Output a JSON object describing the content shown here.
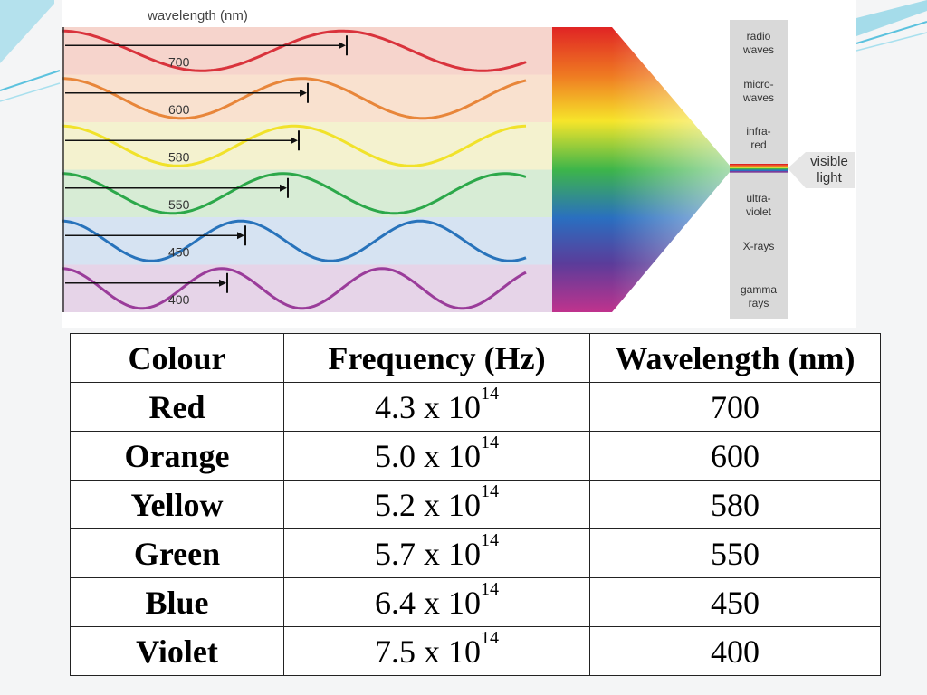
{
  "diagram": {
    "axis_label": "wavelength (nm)",
    "waves": [
      {
        "nm": "700",
        "color": "#d9333c",
        "band": "#f6d4cc"
      },
      {
        "nm": "600",
        "color": "#e8863a",
        "band": "#f9e1cf"
      },
      {
        "nm": "580",
        "color": "#f1e22a",
        "band": "#f4f2cf"
      },
      {
        "nm": "550",
        "color": "#2ca84a",
        "band": "#d7ecd5"
      },
      {
        "nm": "450",
        "color": "#2873bb",
        "band": "#d6e3f2"
      },
      {
        "nm": "400",
        "color": "#9a3c9a",
        "band": "#e6d4e8"
      }
    ],
    "spectrum_labels": [
      [
        "radio",
        "waves"
      ],
      [
        "micro-",
        "waves"
      ],
      [
        "infra-",
        "red"
      ],
      [
        "ultra-",
        "violet"
      ],
      [
        "X-rays"
      ],
      [
        "gamma",
        "rays"
      ]
    ],
    "visible_label": [
      "visible",
      "light"
    ]
  },
  "table": {
    "headers": [
      "Colour",
      "Frequency (Hz)",
      "Wavelength (nm)"
    ],
    "rows": [
      {
        "colour": "Red",
        "mantissa": "4.3 x 10",
        "exponent": "14",
        "wavelength": "700"
      },
      {
        "colour": "Orange",
        "mantissa": "5.0 x 10",
        "exponent": "14",
        "wavelength": "600"
      },
      {
        "colour": "Yellow",
        "mantissa": "5.2 x 10",
        "exponent": "14",
        "wavelength": "580"
      },
      {
        "colour": "Green",
        "mantissa": "5.7 x 10",
        "exponent": "14",
        "wavelength": "550"
      },
      {
        "colour": "Blue",
        "mantissa": "6.4 x 10",
        "exponent": "14",
        "wavelength": "450"
      },
      {
        "colour": "Violet",
        "mantissa": "7.5 x 10",
        "exponent": "14",
        "wavelength": "400"
      }
    ]
  }
}
